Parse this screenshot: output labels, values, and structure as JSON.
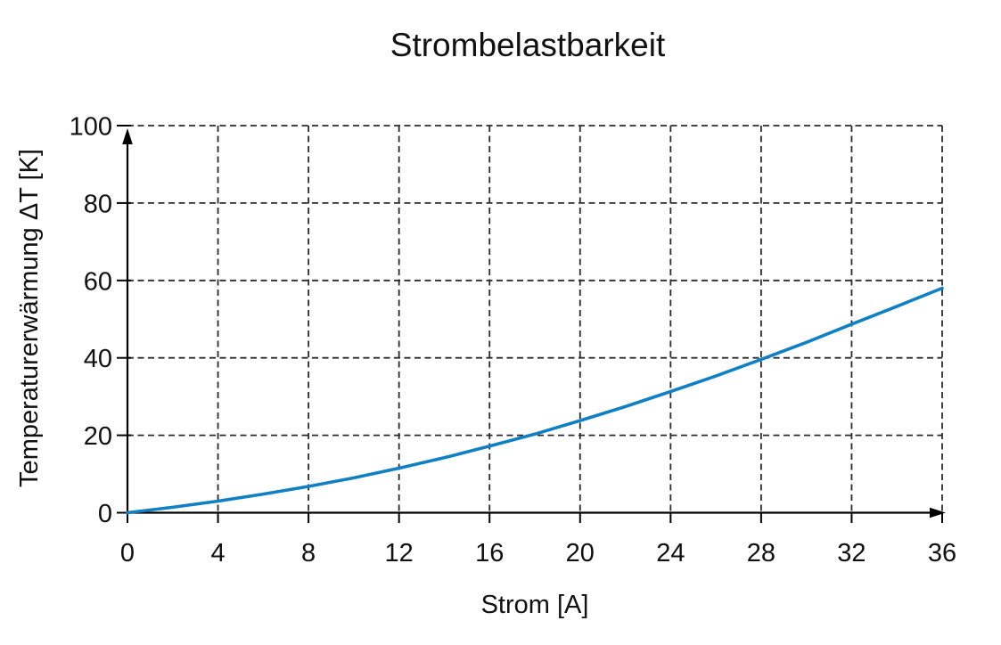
{
  "figure": {
    "background": "#ffffff",
    "text_color": "#111111",
    "axis_color": "#000000",
    "grid_color": "#2b2b2b"
  },
  "chart_data": {
    "type": "line",
    "title": "Strombelastbarkeit",
    "xlabel": "Strom [A]",
    "ylabel": "Temperaturerwärmung ΔT [K]",
    "xlim": [
      0,
      36
    ],
    "ylim": [
      0,
      100
    ],
    "xticks": [
      0,
      4,
      8,
      12,
      16,
      20,
      24,
      28,
      32,
      36
    ],
    "yticks": [
      0,
      20,
      40,
      60,
      80,
      100
    ],
    "grid": true,
    "grid_style": "dashed",
    "legend": false,
    "line_color": "#1180c2",
    "x": [
      0,
      2,
      4,
      6,
      8,
      10,
      12,
      14,
      16,
      18,
      20,
      22,
      24,
      26,
      28,
      30,
      32,
      34,
      36
    ],
    "y": [
      0,
      1.4,
      3.0,
      4.8,
      6.8,
      9.0,
      11.5,
      14.2,
      17.2,
      20.3,
      23.8,
      27.4,
      31.3,
      35.3,
      39.6,
      44.0,
      48.7,
      53.3,
      58.0
    ]
  }
}
